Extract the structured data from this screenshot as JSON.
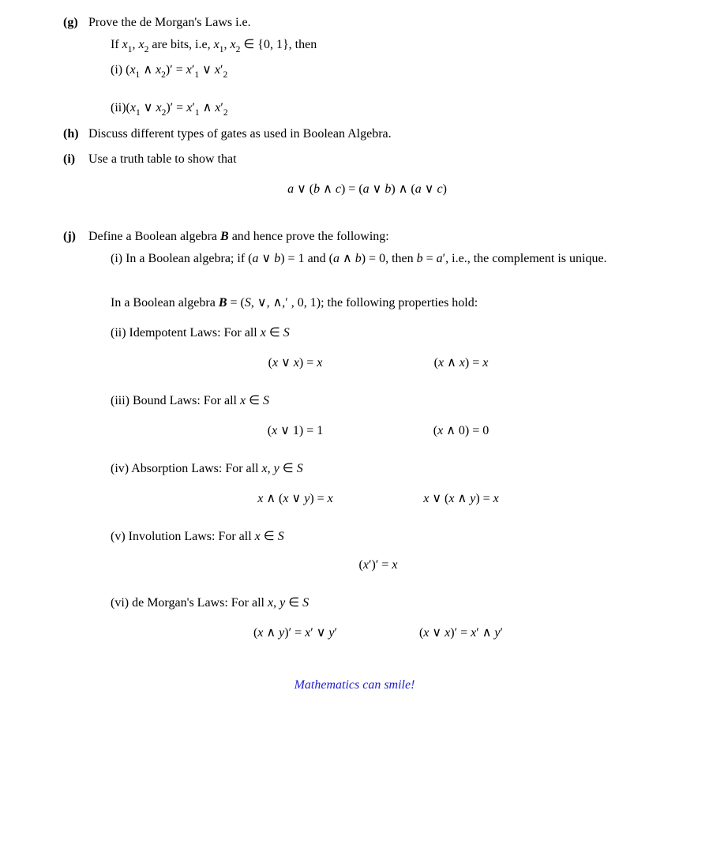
{
  "items": {
    "g": {
      "label": "(g)",
      "intro1": "Prove the de Morgan's Laws i.e.",
      "intro2_pre": "If ",
      "intro2_mid": " are bits, i.e, ",
      "intro2_post": ", then",
      "i_label": "(i) ",
      "ii_label": "(ii)"
    },
    "h": {
      "label": "(h)",
      "text": "Discuss different types of gates as used in Boolean Algebra."
    },
    "i": {
      "label": "(i)",
      "text": "Use a truth table to show that"
    },
    "j": {
      "label": "(j)",
      "intro_pre": "Define a Boolean algebra ",
      "intro_post": " and hence prove the following:",
      "i_pre": "(i) In a Boolean algebra; if ",
      "i_mid1": " and ",
      "i_mid2": ", then ",
      "i_post": ", i.e., the complement is unique.",
      "alg_pre": "In a Boolean algebra ",
      "alg_post": "; the following properties hold:",
      "ii_pre": "(ii) Idempotent Laws: For all ",
      "iii_pre": "(iii) Bound Laws: For all ",
      "iv_pre": "(iv) Absorption Laws: For all ",
      "v_pre": "(v) Involution Laws: For all ",
      "vi_pre": "(vi) de Morgan's Laws: For all "
    }
  },
  "footer": "Mathematics can smile!",
  "colors": {
    "text": "#000000",
    "footer": "#2020cc",
    "background": "#ffffff"
  }
}
